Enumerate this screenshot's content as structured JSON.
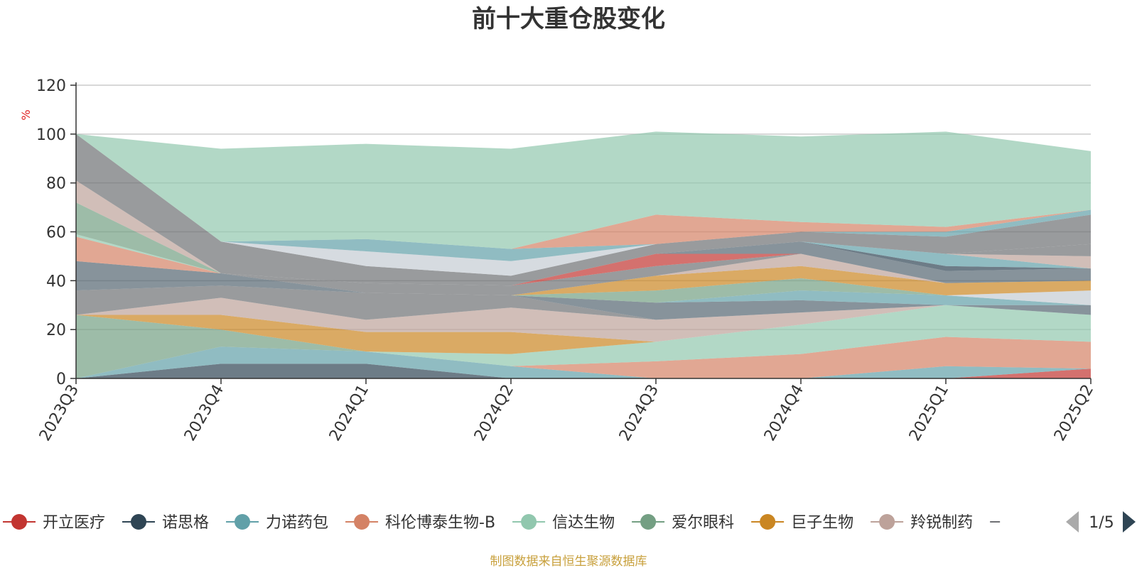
{
  "chart_data": {
    "type": "area",
    "title": "前十大重仓股变化",
    "ylabel": "%",
    "ylim": [
      0,
      120
    ],
    "yticks": [
      0,
      20,
      40,
      60,
      80,
      100,
      120
    ],
    "grid": true,
    "stacked": true,
    "categories": [
      "2023Q3",
      "2023Q4",
      "2024Q1",
      "2024Q2",
      "2024Q3",
      "2024Q4",
      "2025Q1",
      "2025Q2"
    ],
    "series": [
      {
        "name": "开立医疗",
        "color": "#c23531",
        "values": [
          0,
          0,
          0,
          0,
          0,
          0,
          0,
          4
        ]
      },
      {
        "name": "诺思格",
        "color": "#2f4554",
        "values": [
          0,
          6,
          6,
          0,
          0,
          0,
          0,
          0
        ]
      },
      {
        "name": "力诺药包",
        "color": "#61a0a8",
        "values": [
          0,
          7,
          5,
          5,
          0,
          0,
          5,
          0
        ]
      },
      {
        "name": "科伦博泰生物-B",
        "color": "#d48265",
        "values": [
          0,
          0,
          0,
          0,
          7,
          10,
          12,
          11
        ]
      },
      {
        "name": "信达生物",
        "color": "#91c7ae",
        "values": [
          0,
          0,
          0,
          5,
          8,
          12,
          13,
          11
        ]
      },
      {
        "name": "爱尔眼科",
        "color": "#749f83",
        "values": [
          26,
          7,
          0,
          0,
          0,
          0,
          0,
          0
        ]
      },
      {
        "name": "巨子生物",
        "color": "#ca8622",
        "values": [
          0,
          6,
          8,
          9,
          0,
          0,
          0,
          0
        ]
      },
      {
        "name": "羚锐制药",
        "color": "#bda29a",
        "values": [
          0,
          7,
          5,
          10,
          9,
          5,
          0,
          0
        ]
      },
      {
        "name": "",
        "color": "#6e7074",
        "values": [
          10,
          5,
          11,
          5,
          0,
          0,
          0,
          0
        ]
      },
      {
        "name": "",
        "color": "#546570",
        "values": [
          0,
          0,
          0,
          0,
          7,
          5,
          0,
          4
        ]
      },
      {
        "name": "",
        "color": "#61a0a8",
        "values": [
          0,
          0,
          0,
          0,
          0,
          4,
          4,
          0
        ]
      },
      {
        "name": "",
        "color": "#c4ccd3",
        "values": [
          0,
          0,
          0,
          0,
          0,
          0,
          0,
          6
        ]
      },
      {
        "name": "",
        "color": "#749f83",
        "values": [
          0,
          0,
          0,
          0,
          5,
          5,
          0,
          0
        ]
      },
      {
        "name": "",
        "color": "#ca8622",
        "values": [
          0,
          0,
          0,
          0,
          6,
          5,
          5,
          4
        ]
      },
      {
        "name": "",
        "color": "#bda29a",
        "values": [
          0,
          0,
          0,
          0,
          0,
          5,
          0,
          0
        ]
      },
      {
        "name": "",
        "color": "#546570",
        "values": [
          12,
          5,
          0,
          0,
          0,
          0,
          0,
          0
        ]
      },
      {
        "name": "",
        "color": "#d48265",
        "values": [
          10,
          0,
          0,
          0,
          0,
          0,
          0,
          0
        ]
      },
      {
        "name": "",
        "color": "#6e7074",
        "values": [
          0,
          0,
          4,
          4,
          4,
          0,
          0,
          0
        ]
      },
      {
        "name": "",
        "color": "#c23531",
        "values": [
          0,
          0,
          0,
          0,
          5,
          0,
          0,
          0
        ]
      },
      {
        "name": "",
        "color": "#546570",
        "values": [
          0,
          0,
          0,
          0,
          0,
          5,
          5,
          5
        ]
      },
      {
        "name": "",
        "color": "#2f4554",
        "values": [
          0,
          0,
          0,
          0,
          0,
          0,
          2,
          0
        ]
      },
      {
        "name": "",
        "color": "#61a0a8",
        "values": [
          0,
          0,
          0,
          0,
          0,
          0,
          5,
          0
        ]
      },
      {
        "name": "",
        "color": "#d48265",
        "values": [
          0,
          0,
          0,
          0,
          0,
          0,
          0,
          0
        ]
      },
      {
        "name": "",
        "color": "#bda29a",
        "values": [
          0,
          0,
          0,
          0,
          0,
          0,
          0,
          5
        ]
      },
      {
        "name": "",
        "color": "#6e7074",
        "values": [
          0,
          0,
          0,
          0,
          0,
          0,
          0,
          5
        ]
      },
      {
        "name": "",
        "color": "#91c7ae",
        "values": [
          1,
          0,
          0,
          0,
          0,
          0,
          0,
          0
        ]
      },
      {
        "name": "",
        "color": "#749f83",
        "values": [
          13,
          0,
          0,
          0,
          0,
          0,
          0,
          0
        ]
      },
      {
        "name": "",
        "color": "#bda29a",
        "values": [
          9,
          0,
          0,
          0,
          0,
          0,
          0,
          0
        ]
      },
      {
        "name": "",
        "color": "#6e7074",
        "values": [
          19,
          13,
          7,
          4,
          4,
          4,
          7,
          12
        ]
      },
      {
        "name": "",
        "color": "#c4ccd3",
        "values": [
          0,
          0,
          6,
          6,
          0,
          0,
          0,
          0
        ]
      },
      {
        "name": "",
        "color": "#61a0a8",
        "values": [
          0,
          0,
          5,
          5,
          0,
          0,
          2,
          2
        ]
      },
      {
        "name": "",
        "color": "#d48265",
        "values": [
          0,
          0,
          0,
          0,
          12,
          4,
          2,
          0
        ]
      },
      {
        "name": "",
        "color": "#91c7ae",
        "values": [
          0,
          38,
          39,
          41,
          34,
          35,
          39,
          24
        ]
      }
    ]
  },
  "legend": {
    "items": [
      {
        "name": "开立医疗",
        "color": "#c23531"
      },
      {
        "name": "诺思格",
        "color": "#2f4554"
      },
      {
        "name": "力诺药包",
        "color": "#61a0a8"
      },
      {
        "name": "科伦博泰生物-B",
        "color": "#d48265"
      },
      {
        "name": "信达生物",
        "color": "#91c7ae"
      },
      {
        "name": "爱尔眼科",
        "color": "#749f83"
      },
      {
        "name": "巨子生物",
        "color": "#ca8622"
      },
      {
        "name": "羚锐制药",
        "color": "#bda29a"
      }
    ],
    "page": "1/5"
  },
  "source": "制图数据来自恒生聚源数据库"
}
